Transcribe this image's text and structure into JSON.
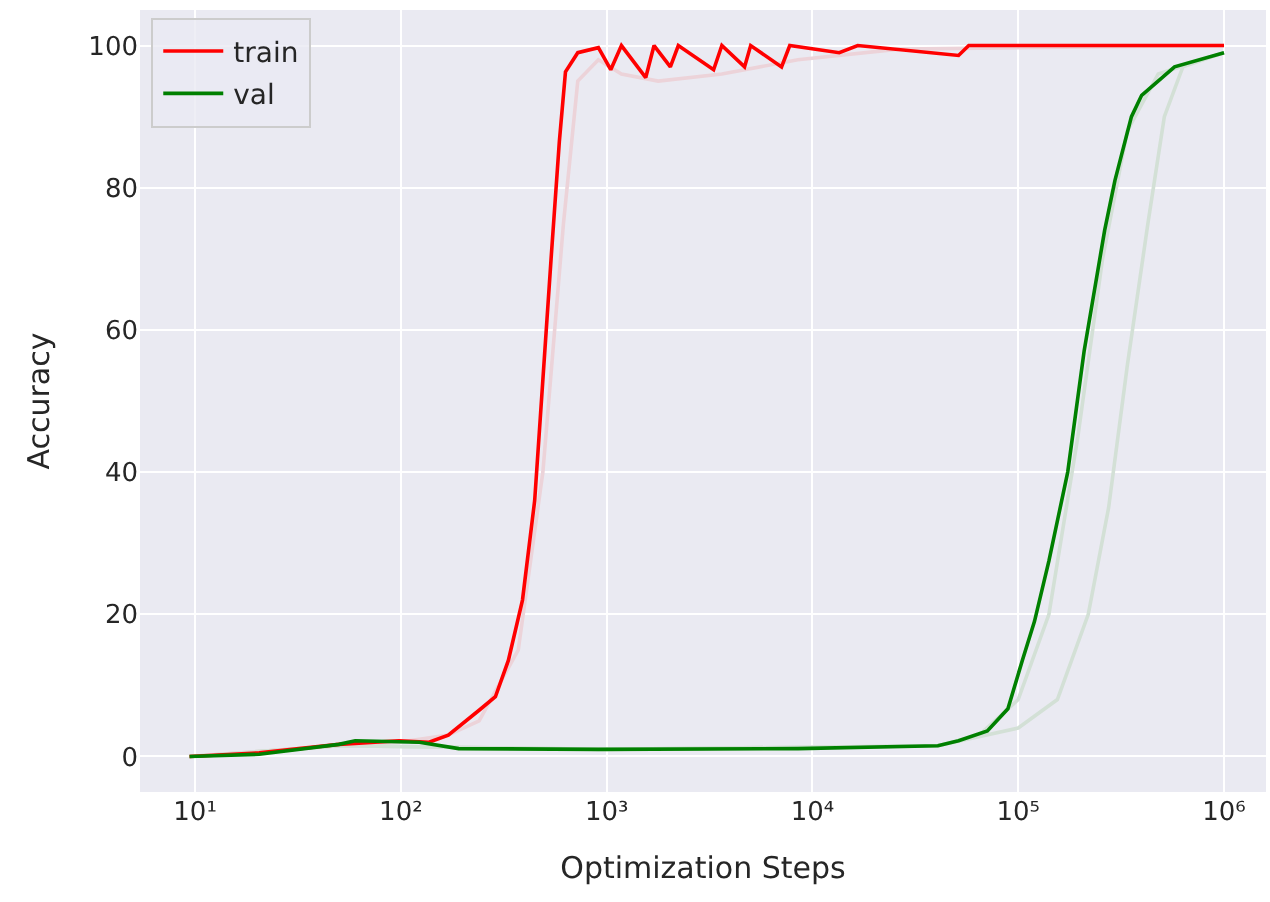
{
  "chart_data": {
    "type": "line",
    "xlabel": "Optimization Steps",
    "ylabel": "Accuracy",
    "log": "x",
    "grid": true,
    "legend": "top left",
    "xlim": [
      5.4,
      1600000
    ],
    "ylim": [
      -5,
      105
    ],
    "xticks": [
      {
        "value": 10,
        "label": "10¹"
      },
      {
        "value": 100,
        "label": "10²"
      },
      {
        "value": 1000,
        "label": "10³"
      },
      {
        "value": 10000,
        "label": "10⁴"
      },
      {
        "value": 100000,
        "label": "10⁵"
      },
      {
        "value": 1000000,
        "label": "10⁶"
      }
    ],
    "yticks": [
      0,
      20,
      40,
      60,
      80,
      100
    ],
    "series": [
      {
        "color": "#ecd3d9",
        "x": [
          9.4,
          50,
          98,
          170,
          240,
          372,
          490,
          617,
          724,
          912,
          1180,
          1780,
          3630,
          8500,
          26300,
          1000000
        ],
        "values": [
          0,
          1.5,
          2,
          3,
          5,
          15,
          40,
          75,
          95,
          98,
          96,
          95,
          96,
          98,
          99.5,
          100
        ]
      },
      {
        "color": "#d3e0d6",
        "x": [
          9.4,
          50,
          1000,
          40700,
          64600,
          100000,
          141000,
          195000,
          257000,
          339000,
          479000,
          1000000
        ],
        "values": [
          0,
          1.5,
          1,
          1.5,
          3,
          8,
          20,
          45,
          70,
          88,
          96,
          99
        ]
      },
      {
        "color": "#d3e0d6",
        "x": [
          9.4,
          50,
          1000,
          40700,
          100000,
          155000,
          219000,
          275000,
          339000,
          427000,
          513000,
          631000,
          1000000
        ],
        "values": [
          0,
          1.5,
          1,
          1.5,
          4,
          8,
          20,
          35,
          55,
          75,
          90,
          97,
          99
        ]
      },
      {
        "name": "train",
        "color": "#ff0000",
        "x": [
          9.4,
          20.5,
          50,
          98,
          137,
          170,
          240,
          288,
          333,
          390,
          447,
          490,
          537,
          589,
          631,
          724,
          912,
          1047,
          1180,
          1549,
          1700,
          2040,
          2230,
          3310,
          3630,
          4680,
          5010,
          7080,
          7760,
          13500,
          16600,
          51300,
          57500,
          1000000
        ],
        "values": [
          0,
          0.5,
          1.7,
          2.2,
          2,
          3,
          6.5,
          8.4,
          13.5,
          22,
          36,
          53,
          70,
          86.5,
          96.3,
          99,
          99.7,
          96.6,
          100,
          95.5,
          100,
          97,
          100,
          96.6,
          100,
          97,
          100,
          97,
          100,
          99,
          100,
          98.6,
          100,
          100
        ]
      },
      {
        "name": "val",
        "color": "#008000",
        "x": [
          9.4,
          20.5,
          50,
          60,
          123,
          191,
          912,
          8500,
          40700,
          51300,
          70800,
          89100,
          104700,
          120000,
          141000,
          174000,
          209000,
          263000,
          295000,
          355000,
          398000,
          575000,
          1000000
        ],
        "values": [
          0,
          0.3,
          1.7,
          2.2,
          2,
          1.1,
          1,
          1.1,
          1.5,
          2.2,
          3.6,
          6.7,
          13.5,
          19,
          27.5,
          40,
          57,
          74,
          81,
          90,
          93,
          97,
          99
        ]
      }
    ]
  }
}
